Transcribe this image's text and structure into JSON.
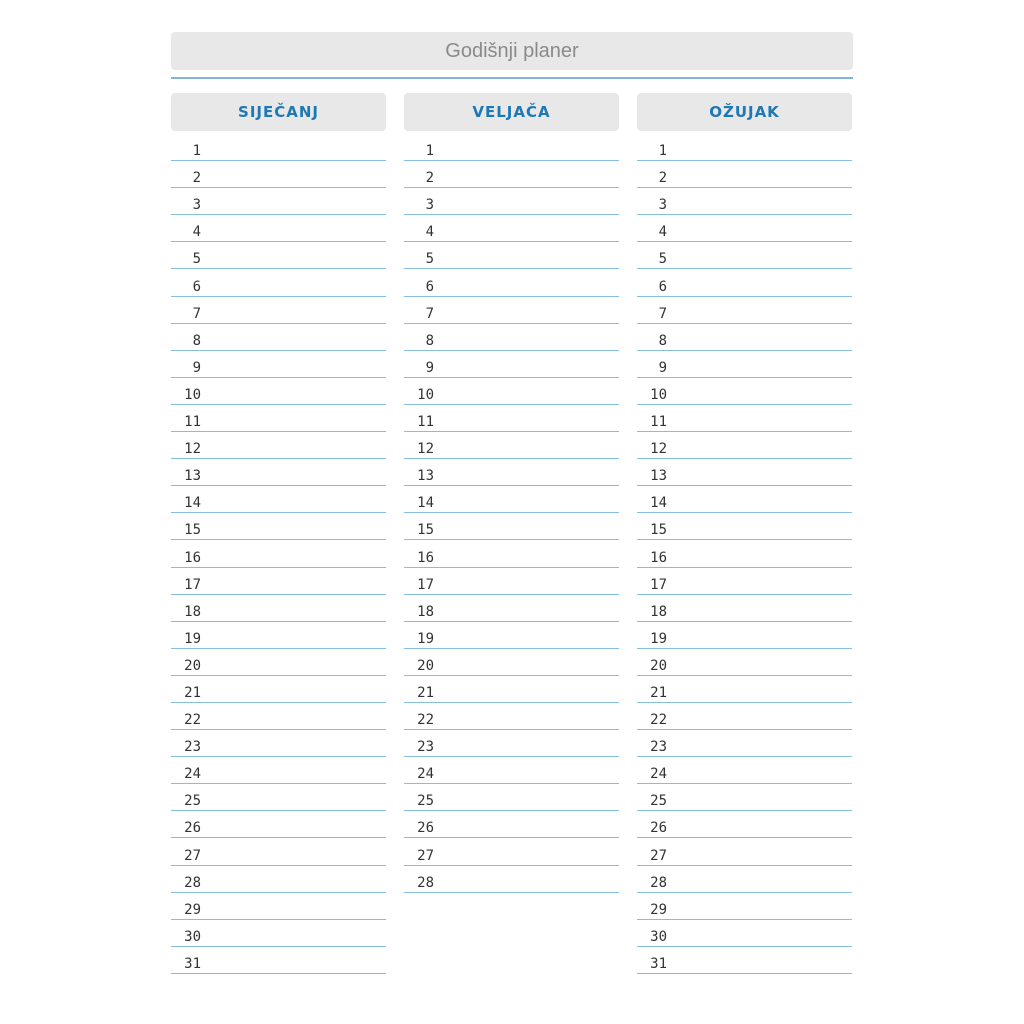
{
  "title": "Godišnji planer",
  "colors": {
    "accent": "#1d78b5",
    "rule": "#86bfdc",
    "header_bg": "#e8e8e9"
  },
  "months": [
    {
      "name": "SIJEČANJ",
      "days": [
        1,
        2,
        3,
        4,
        5,
        6,
        7,
        8,
        9,
        10,
        11,
        12,
        13,
        14,
        15,
        16,
        17,
        18,
        19,
        20,
        21,
        22,
        23,
        24,
        25,
        26,
        27,
        28,
        29,
        30,
        31
      ]
    },
    {
      "name": "VELJAČA",
      "days": [
        1,
        2,
        3,
        4,
        5,
        6,
        7,
        8,
        9,
        10,
        11,
        12,
        13,
        14,
        15,
        16,
        17,
        18,
        19,
        20,
        21,
        22,
        23,
        24,
        25,
        26,
        27,
        28
      ]
    },
    {
      "name": "OŽUJAK",
      "days": [
        1,
        2,
        3,
        4,
        5,
        6,
        7,
        8,
        9,
        10,
        11,
        12,
        13,
        14,
        15,
        16,
        17,
        18,
        19,
        20,
        21,
        22,
        23,
        24,
        25,
        26,
        27,
        28,
        29,
        30,
        31
      ]
    }
  ]
}
